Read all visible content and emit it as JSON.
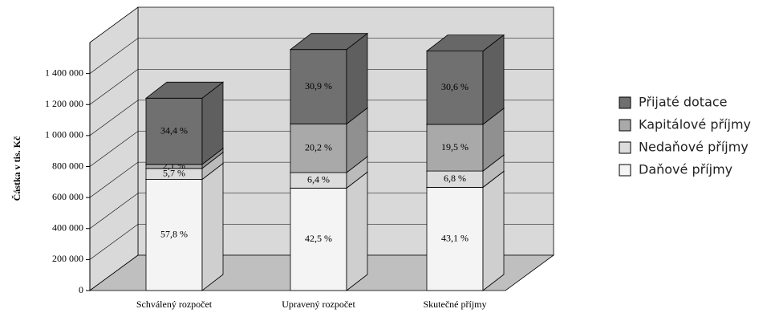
{
  "chart_data": {
    "type": "bar3d_stacked",
    "y_axis_label": "Částka v tis. Kč",
    "categories": [
      "Schválený rozpočet",
      "Upravený rozpočet",
      "Skutečné příjmy"
    ],
    "series": [
      {
        "name": "Daňové příjmy",
        "color": "#f4f4f4",
        "values": [
          717000,
          661000,
          666000
        ],
        "percent_labels": [
          "57,8 %",
          "42,5 %",
          "43,1 %"
        ]
      },
      {
        "name": "Nedaňové příjmy",
        "color": "#dcdcdc",
        "values": [
          71000,
          100000,
          105000
        ],
        "percent_labels": [
          "5,7 %",
          "6,4 %",
          "6,8 %"
        ]
      },
      {
        "name": "Kapitálové příjmy",
        "color": "#a9a9a9",
        "values": [
          26000,
          314000,
          301000
        ],
        "percent_labels": [
          "2,1 %",
          "20,2 %",
          "19,5 %"
        ]
      },
      {
        "name": "Přijaté dotace",
        "color": "#707070",
        "values": [
          427000,
          480000,
          473000
        ],
        "percent_labels": [
          "34,4 %",
          "30,9 %",
          "30,6 %"
        ]
      }
    ],
    "ylim": [
      0,
      1600000
    ],
    "yticks": [
      0,
      {
        "value": 200000,
        "label": "200 000"
      },
      {
        "value": 400000,
        "label": "400 000"
      },
      {
        "value": 600000,
        "label": "600 000"
      },
      {
        "value": 800000,
        "label": "800 000"
      },
      {
        "value": 1000000,
        "label": "1 000 000"
      },
      {
        "value": 1200000,
        "label": "1 200 000"
      },
      {
        "value": 1400000,
        "label": "1 400 000"
      }
    ],
    "grid": true,
    "legend": "right"
  }
}
